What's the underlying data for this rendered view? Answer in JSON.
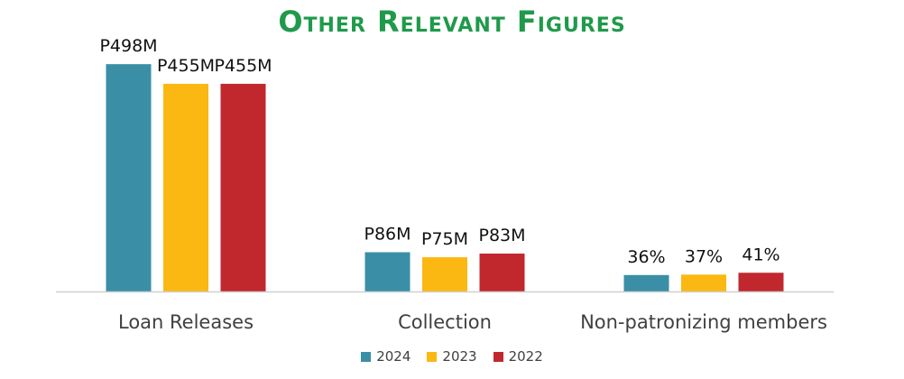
{
  "chart_data": {
    "type": "bar",
    "title": "Other Relevant Figures",
    "title_color": "#1f9a4a",
    "categories": [
      "Loan Releases",
      "Collection",
      "Non-patronizing members"
    ],
    "series": [
      {
        "name": "2024",
        "color": "#3a8fa6",
        "values": [
          498,
          86,
          36
        ],
        "labels": [
          "P498M",
          "P86M",
          "36%"
        ]
      },
      {
        "name": "2023",
        "color": "#fbb812",
        "values": [
          455,
          75,
          37
        ],
        "labels": [
          "P455M",
          "P75M",
          "37%"
        ]
      },
      {
        "name": "2022",
        "color": "#c0282e",
        "values": [
          455,
          83,
          41
        ],
        "labels": [
          "P455M",
          "P83M",
          "41%"
        ]
      }
    ],
    "ylim": [
      0,
      520
    ],
    "legend_position": "bottom-center",
    "grid": false
  }
}
